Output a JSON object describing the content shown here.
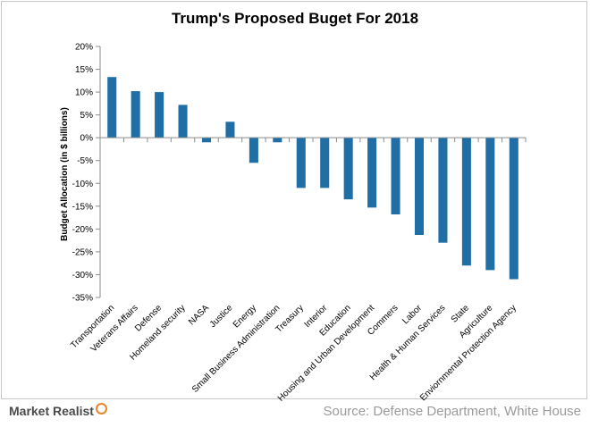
{
  "chart_data": {
    "type": "bar",
    "title": "Trump's Proposed Buget For 2018",
    "ylabel": "Budget Allocation  (in $ billions)",
    "xlabel": "",
    "ylim": [
      -35,
      20
    ],
    "ytick_step": 5,
    "ytick_suffix": "%",
    "grid": false,
    "legend": "none",
    "bar_color": "#1f6fa6",
    "categories": [
      "Transportation",
      "Veterans Affairs",
      "Defense",
      "Homeland security",
      "NASA",
      "Justice",
      "Energy",
      "Small Business Administration",
      "Treasury",
      "Interior",
      "Education",
      "Housing and Urban Development",
      "Commers",
      "Labor",
      "Health & Human Services",
      "State",
      "Agriculture",
      "Enviornmental Protection Agency"
    ],
    "values": [
      13.3,
      10.2,
      10.0,
      7.2,
      -1.0,
      3.5,
      -5.5,
      -1.0,
      -11.0,
      -11.0,
      -13.5,
      -15.3,
      -16.8,
      -21.3,
      -23.0,
      -28.0,
      -29.0,
      -31.0
    ]
  },
  "footer": {
    "brand": "Market Realist",
    "source": "Source: Defense Department, White House"
  }
}
